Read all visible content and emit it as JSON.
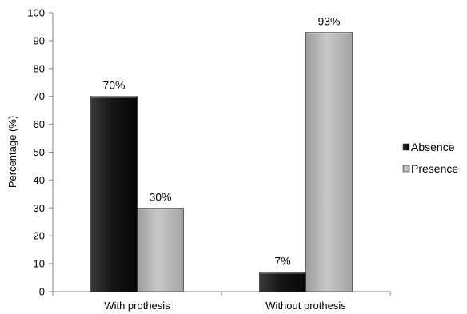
{
  "chart_data": {
    "type": "bar",
    "title": "",
    "xlabel": "",
    "ylabel": "Percentage (%)",
    "ylim": [
      0,
      100
    ],
    "yticks": [
      0,
      10,
      20,
      30,
      40,
      50,
      60,
      70,
      80,
      90,
      100
    ],
    "grid": false,
    "legend_position": "right",
    "categories": [
      "With prothesis",
      "Without prothesis"
    ],
    "series": [
      {
        "name": "Absence",
        "values": [
          70,
          7
        ],
        "data_labels": [
          "70%",
          "7%"
        ],
        "color": "#1e1e1e"
      },
      {
        "name": "Presence",
        "values": [
          30,
          93
        ],
        "data_labels": [
          "30%",
          "93%"
        ],
        "color": "#bdbdbd"
      }
    ]
  }
}
